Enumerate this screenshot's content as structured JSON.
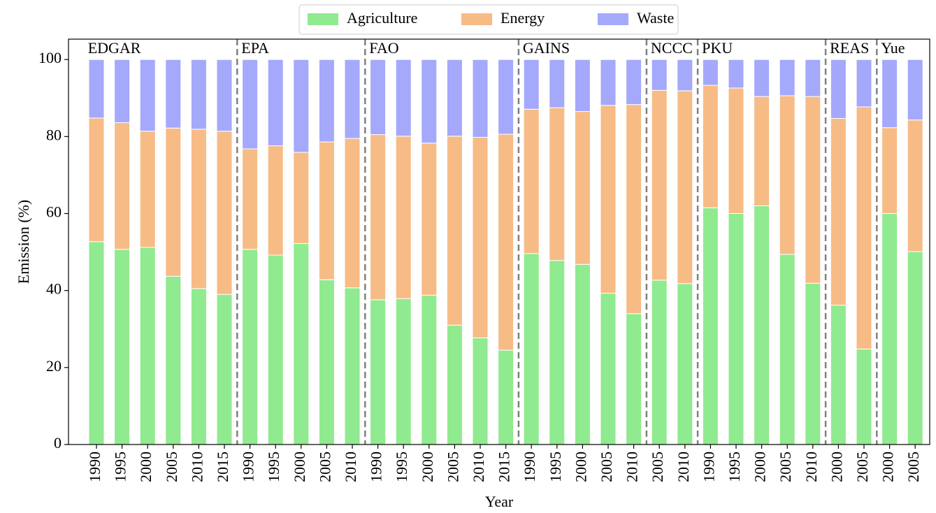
{
  "chart_data": {
    "type": "stacked-bar",
    "x_label": "Year",
    "y_label": "Emission (%)",
    "groups": [
      {
        "label": "EDGAR",
        "categories": [
          "1990",
          "1995",
          "2000",
          "2005",
          "2010",
          "2015"
        ]
      },
      {
        "label": "EPA",
        "categories": [
          "1990",
          "1995",
          "2000",
          "2005",
          "2010"
        ]
      },
      {
        "label": "FAO",
        "categories": [
          "1990",
          "1995",
          "2000",
          "2005",
          "2010",
          "2015"
        ]
      },
      {
        "label": "GAINS",
        "categories": [
          "1990",
          "1995",
          "2000",
          "2005",
          "2010"
        ]
      },
      {
        "label": "NCCC",
        "categories": [
          "2005",
          "2010"
        ]
      },
      {
        "label": "PKU",
        "categories": [
          "1990",
          "1995",
          "2000",
          "2005",
          "2010"
        ]
      },
      {
        "label": "REAS",
        "categories": [
          "2000",
          "2005"
        ]
      },
      {
        "label": "Yue",
        "categories": [
          "2000",
          "2005"
        ]
      }
    ],
    "series": [
      {
        "name": "Agriculture",
        "color": "#90ea8f",
        "values": [
          52.7,
          50.7,
          51.2,
          43.7,
          40.5,
          39.0,
          50.7,
          49.2,
          52.2,
          42.8,
          40.7,
          37.6,
          37.9,
          38.8,
          31.0,
          27.7,
          24.5,
          49.6,
          47.8,
          46.8,
          39.3,
          34.0,
          42.7,
          41.8,
          61.5,
          60.0,
          62.0,
          49.4,
          41.9,
          36.2,
          24.8,
          60.0,
          50.1
        ]
      },
      {
        "name": "Energy",
        "color": "#f7bb86",
        "values": [
          32.1,
          32.9,
          30.2,
          38.5,
          41.4,
          42.4,
          26.1,
          28.4,
          23.7,
          35.8,
          38.8,
          42.9,
          42.2,
          39.5,
          49.1,
          52.1,
          56.1,
          37.5,
          39.7,
          39.7,
          48.8,
          54.3,
          49.3,
          50.1,
          31.8,
          32.6,
          28.4,
          41.2,
          48.5,
          48.5,
          62.9,
          22.3,
          34.2
        ]
      },
      {
        "name": "Waste",
        "color": "#a4a9fb",
        "values": [
          15.2,
          16.4,
          18.6,
          17.8,
          18.1,
          18.6,
          23.2,
          22.4,
          24.1,
          21.4,
          20.5,
          19.5,
          19.9,
          21.7,
          19.9,
          20.2,
          19.4,
          12.9,
          12.5,
          13.5,
          11.9,
          11.7,
          8.0,
          8.1,
          6.7,
          7.4,
          9.6,
          9.4,
          9.6,
          15.3,
          12.3,
          17.7,
          15.7
        ]
      }
    ],
    "ylim": [
      0,
      105.3
    ],
    "yticks": [
      0,
      20,
      40,
      60,
      80,
      100
    ],
    "legend": "top-center"
  }
}
